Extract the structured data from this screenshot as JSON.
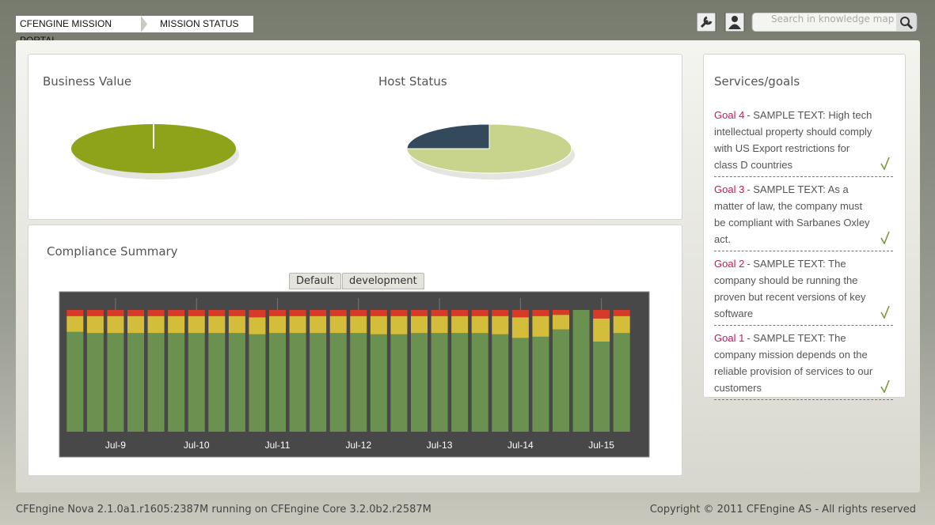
{
  "header": {
    "breadcrumb": [
      "CFENGINE MISSION PORTAL",
      "MISSION STATUS"
    ],
    "search_placeholder": "Search in knowledge map"
  },
  "chart_data": [
    {
      "type": "pie",
      "title": "Business Value",
      "values": [
        100
      ],
      "colors": [
        "#8fa31a"
      ]
    },
    {
      "type": "pie",
      "title": "Host Status",
      "values": [
        75,
        25
      ],
      "colors": [
        "#c8d48c",
        "#344a5c"
      ]
    },
    {
      "type": "bar",
      "stacked": true,
      "title": "Compliance Summary",
      "tabs": [
        "Default",
        "development"
      ],
      "categories": [
        null,
        null,
        "Jul-9",
        null,
        null,
        null,
        "Jul-10",
        null,
        null,
        null,
        "Jul-11",
        null,
        null,
        null,
        "Jul-12",
        null,
        null,
        null,
        "Jul-13",
        null,
        null,
        null,
        "Jul-14",
        null,
        null,
        null,
        "Jul-15",
        null
      ],
      "ylim": [
        0,
        100
      ],
      "series": [
        {
          "color": "#6a9150",
          "values": [
            82,
            81,
            81,
            81,
            81,
            81,
            81,
            81,
            81,
            80,
            81,
            81,
            81,
            81,
            81,
            80,
            80,
            81,
            81,
            81,
            81,
            80,
            77,
            78,
            84,
            100,
            74,
            81
          ]
        },
        {
          "color": "#d4bd3a",
          "values": [
            13,
            14,
            14,
            14,
            14,
            14,
            14,
            14,
            14,
            14,
            14,
            14,
            14,
            14,
            14,
            15,
            15,
            14,
            14,
            14,
            14,
            15,
            17,
            17,
            12,
            0,
            19,
            14
          ]
        },
        {
          "color": "#d83a2a",
          "values": [
            5,
            5,
            5,
            5,
            5,
            5,
            5,
            5,
            5,
            6,
            5,
            5,
            5,
            5,
            5,
            5,
            5,
            5,
            5,
            5,
            5,
            5,
            6,
            5,
            4,
            0,
            7,
            5
          ]
        }
      ]
    }
  ],
  "sidebar": {
    "title": "Services/goals",
    "goals": [
      {
        "label": "Goal 4",
        "text": "- SAMPLE TEXT: High tech intellectual property should comply with US Export restrictions for class D countries"
      },
      {
        "label": "Goal 3",
        "text": "- SAMPLE TEXT: As a matter of law, the company must be compliant with Sarbanes Oxley act."
      },
      {
        "label": "Goal 2",
        "text": "- SAMPLE TEXT: The company should be running the proven but recent versions of key software"
      },
      {
        "label": "Goal 1",
        "text": "- SAMPLE TEXT: The company mission depends on the reliable provision of services to our customers"
      }
    ]
  },
  "footer": {
    "left": "CFEngine Nova 2.1.0a1.r1605:2387M running on CFEngine Core 3.2.0b2.r2587M",
    "right": "Copyright © 2011 CFEngine AS - All rights reserved"
  }
}
